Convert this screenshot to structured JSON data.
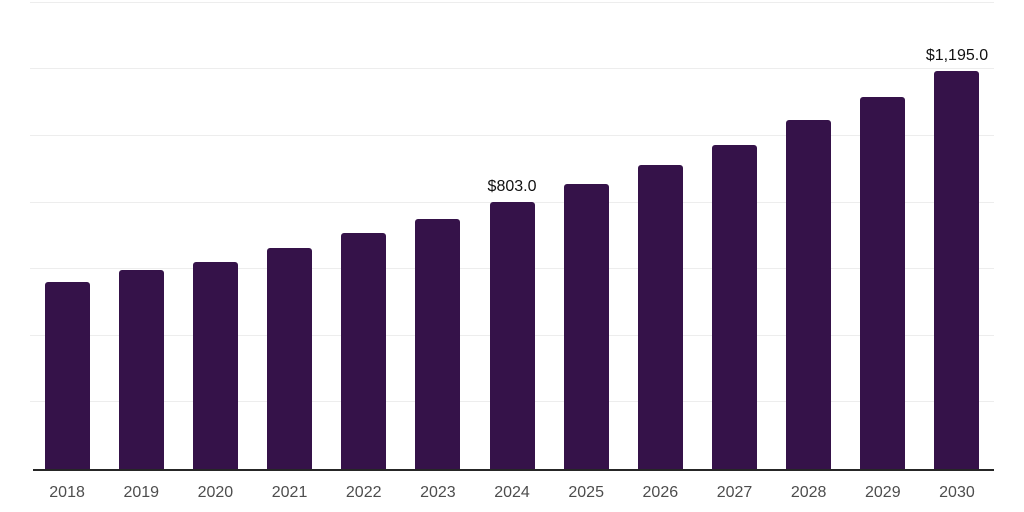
{
  "chart_data": {
    "type": "bar",
    "title": "",
    "xlabel": "",
    "ylabel": "",
    "categories": [
      "2018",
      "2019",
      "2020",
      "2021",
      "2022",
      "2023",
      "2024",
      "2025",
      "2026",
      "2027",
      "2028",
      "2029",
      "2030"
    ],
    "values": [
      561,
      599,
      622,
      665,
      710,
      752,
      803,
      857,
      913,
      974,
      1047,
      1117,
      1195
    ],
    "value_labels": [
      "",
      "",
      "",
      "",
      "",
      "",
      "$803.0",
      "",
      "",
      "",
      "",
      "",
      "$1,195.0"
    ],
    "ylim": [
      0,
      1400
    ],
    "gridline_step": 200,
    "grid": true,
    "legend": false,
    "y_tick_labels_shown": false,
    "colors": {
      "bar": "#351249",
      "gridline": "#ededed",
      "axis_line": "#262626",
      "tick_label": "#4d4d4d",
      "value_label": "#111111",
      "background": "#ffffff"
    }
  }
}
